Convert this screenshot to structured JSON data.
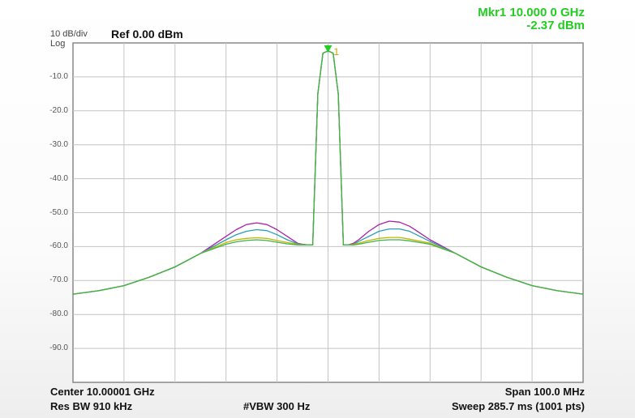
{
  "marker": {
    "readout_line1": "Mkr1 10.000 0 GHz",
    "readout_line2": "-2.37 dBm",
    "label": "1",
    "color": "#22cc22"
  },
  "header": {
    "scale": "10 dB/div",
    "scale_mode": "Log",
    "ref_level": "Ref 0.00 dBm"
  },
  "footer": {
    "center": "Center 10.00001 GHz",
    "span": "Span 100.0 MHz",
    "rbw": "Res BW 910 kHz",
    "vbw": "#VBW 300 Hz",
    "sweep": "Sweep  285.7 ms (1001 pts)"
  },
  "chart_data": {
    "type": "line",
    "x_range_mhz": [
      -50,
      50
    ],
    "ylim": [
      -100,
      0
    ],
    "yticks": [
      {
        "value": -10,
        "label": "-10.0"
      },
      {
        "value": -20,
        "label": "-20.0"
      },
      {
        "value": -30,
        "label": "-30.0"
      },
      {
        "value": -40,
        "label": "-40.0"
      },
      {
        "value": -50,
        "label": "-50.0"
      },
      {
        "value": -60,
        "label": "-60.0"
      },
      {
        "value": -70,
        "label": "-70.0"
      },
      {
        "value": -80,
        "label": "-80.0"
      },
      {
        "value": -90,
        "label": "-90.0"
      }
    ],
    "grid": true,
    "grid_divisions": {
      "x": 10,
      "y": 10
    },
    "x_offset_mhz": [
      -50,
      -45,
      -40,
      -35,
      -30,
      -25,
      -20,
      -18,
      -16,
      -14,
      -12,
      -10,
      -8,
      -6,
      -5,
      -4,
      -3,
      -2,
      -1,
      0,
      1,
      2,
      3,
      4,
      5,
      6,
      8,
      10,
      12,
      14,
      16,
      18,
      20,
      25,
      30,
      35,
      40,
      45,
      50
    ],
    "series": [
      {
        "color": "#aa22aa",
        "values": [
          -74,
          -73,
          -71.5,
          -69,
          -66,
          -62,
          -57,
          -55,
          -53.5,
          -53,
          -53.5,
          -55,
          -57,
          -59,
          -59.3,
          -59.5,
          -59.5,
          -15,
          -3,
          -2.37,
          -3,
          -15,
          -59.5,
          -59.5,
          -59,
          -58,
          -55.5,
          -53.5,
          -52.5,
          -52.8,
          -54,
          -56,
          -58,
          -62,
          -66,
          -69,
          -71.5,
          -73,
          -74
        ]
      },
      {
        "color": "#2a9fb5",
        "values": [
          -74,
          -73,
          -71.5,
          -69,
          -66,
          -62,
          -58,
          -56.5,
          -55.5,
          -55,
          -55.3,
          -56.5,
          -58,
          -59.2,
          -59.4,
          -59.5,
          -59.5,
          -15,
          -3,
          -2.37,
          -3,
          -15,
          -59.5,
          -59.5,
          -59.3,
          -58.5,
          -57,
          -55.5,
          -54.8,
          -54.8,
          -55.5,
          -57,
          -58.5,
          -62,
          -66,
          -69,
          -71.5,
          -73,
          -74
        ]
      },
      {
        "color": "#c8b400",
        "values": [
          -74,
          -73,
          -71.5,
          -69,
          -66,
          -62,
          -58.8,
          -58,
          -57.6,
          -57.4,
          -57.6,
          -58.2,
          -58.8,
          -59.3,
          -59.4,
          -59.5,
          -59.5,
          -15,
          -3,
          -2.37,
          -3,
          -15,
          -59.5,
          -59.5,
          -59.3,
          -59,
          -58.2,
          -57.6,
          -57.3,
          -57.3,
          -57.8,
          -58.4,
          -59,
          -62,
          -66,
          -69,
          -71.5,
          -73,
          -74
        ]
      },
      {
        "color": "#3cb44b",
        "values": [
          -74,
          -73,
          -71.5,
          -69,
          -66,
          -62,
          -59.3,
          -58.6,
          -58.2,
          -58,
          -58.2,
          -58.7,
          -59.2,
          -59.5,
          -59.5,
          -59.5,
          -59.5,
          -15,
          -3,
          -2.37,
          -3,
          -15,
          -59.5,
          -59.5,
          -59.5,
          -59.3,
          -58.7,
          -58.2,
          -58,
          -58,
          -58.3,
          -58.8,
          -59.3,
          -62,
          -66,
          -69,
          -71.5,
          -73,
          -74
        ]
      }
    ]
  }
}
